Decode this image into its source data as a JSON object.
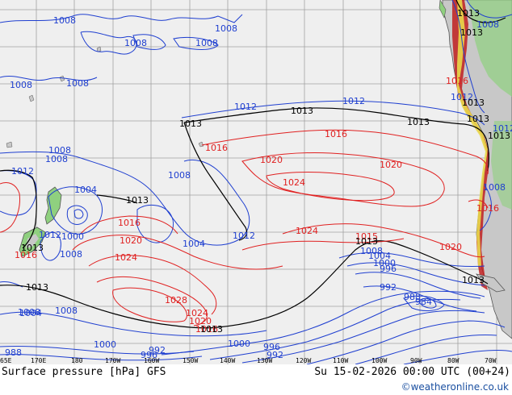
{
  "map": {
    "title": "Surface pressure [hPa] GFS",
    "valid_time": "Su 15-02-2026 00:00 UTC (00+24)",
    "credit": "©weatheronline.co.uk",
    "colors": {
      "ocean": "#efefef",
      "land": "#c8c8c8",
      "land_green": "#8fd07f",
      "grid": "#a0a0a0",
      "low_isobar": "#1f3fd0",
      "high_isobar": "#e02020",
      "ref_isobar": "#000000",
      "coast": "#555555",
      "andes_red": "#c02020",
      "andes_yellow": "#e8d84a"
    },
    "longitude_labels": [
      "65E",
      "170E",
      "180",
      "170W",
      "160W",
      "150W",
      "140W",
      "130W",
      "120W",
      "110W",
      "100W",
      "90W",
      "80W",
      "70W"
    ],
    "isobar_labels": [
      {
        "text": "1008",
        "color": "low"
      },
      {
        "text": "1008",
        "color": "low"
      },
      {
        "text": "1008",
        "color": "low"
      },
      {
        "text": "1008",
        "color": "low"
      },
      {
        "text": "1008",
        "color": "low"
      },
      {
        "text": "1008",
        "color": "low"
      },
      {
        "text": "1008",
        "color": "low"
      },
      {
        "text": "1008",
        "color": "low"
      },
      {
        "text": "1012",
        "color": "low"
      },
      {
        "text": "1012",
        "color": "low"
      },
      {
        "text": "1013",
        "color": "ref"
      },
      {
        "text": "1013",
        "color": "ref"
      },
      {
        "text": "1013",
        "color": "ref"
      },
      {
        "text": "1013",
        "color": "ref"
      },
      {
        "text": "1016",
        "color": "high"
      },
      {
        "text": "1016",
        "color": "high"
      },
      {
        "text": "1020",
        "color": "high"
      },
      {
        "text": "1020",
        "color": "high"
      },
      {
        "text": "1024",
        "color": "high"
      },
      {
        "text": "1024",
        "color": "high"
      },
      {
        "text": "1008",
        "color": "low"
      },
      {
        "text": "1012",
        "color": "low"
      },
      {
        "text": "1004",
        "color": "low"
      },
      {
        "text": "1013",
        "color": "ref"
      },
      {
        "text": "1016",
        "color": "high"
      },
      {
        "text": "1020",
        "color": "high"
      },
      {
        "text": "1024",
        "color": "high"
      },
      {
        "text": "1004",
        "color": "low"
      },
      {
        "text": "1012",
        "color": "low"
      },
      {
        "text": "1008",
        "color": "low"
      },
      {
        "text": "1012",
        "color": "low"
      },
      {
        "text": "1000",
        "color": "low"
      },
      {
        "text": "1013",
        "color": "ref"
      },
      {
        "text": "1008",
        "color": "low"
      },
      {
        "text": "1013",
        "color": "ref"
      },
      {
        "text": "1028",
        "color": "high"
      },
      {
        "text": "1024",
        "color": "high"
      },
      {
        "text": "1020",
        "color": "high"
      },
      {
        "text": "1016",
        "color": "high"
      },
      {
        "text": "1013",
        "color": "ref"
      },
      {
        "text": "1008",
        "color": "low"
      },
      {
        "text": "1004",
        "color": "low"
      },
      {
        "text": "1000",
        "color": "low"
      },
      {
        "text": "996",
        "color": "low"
      },
      {
        "text": "992",
        "color": "low"
      },
      {
        "text": "988",
        "color": "low"
      },
      {
        "text": "984",
        "color": "low"
      },
      {
        "text": "1015",
        "color": "high"
      },
      {
        "text": "1013",
        "color": "ref"
      },
      {
        "text": "1008",
        "color": "low"
      },
      {
        "text": "1004",
        "color": "low"
      },
      {
        "text": "1000",
        "color": "low"
      },
      {
        "text": "1008",
        "color": "low"
      },
      {
        "text": "1004",
        "color": "low"
      },
      {
        "text": "1000",
        "color": "low"
      },
      {
        "text": "996",
        "color": "low"
      },
      {
        "text": "992",
        "color": "low"
      },
      {
        "text": "988",
        "color": "low"
      },
      {
        "text": "992",
        "color": "low"
      },
      {
        "text": "996",
        "color": "low"
      },
      {
        "text": "1016",
        "color": "high"
      },
      {
        "text": "1020",
        "color": "high"
      },
      {
        "text": "1013",
        "color": "ref"
      },
      {
        "text": "1013",
        "color": "ref"
      },
      {
        "text": "1012",
        "color": "low"
      },
      {
        "text": "1008",
        "color": "low"
      },
      {
        "text": "1013",
        "color": "ref"
      },
      {
        "text": "1016",
        "color": "high"
      },
      {
        "text": "1013",
        "color": "ref"
      },
      {
        "text": "1008",
        "color": "low"
      },
      {
        "text": "1016",
        "color": "high"
      },
      {
        "text": "1012",
        "color": "low"
      },
      {
        "text": "1013",
        "color": "ref"
      }
    ]
  }
}
